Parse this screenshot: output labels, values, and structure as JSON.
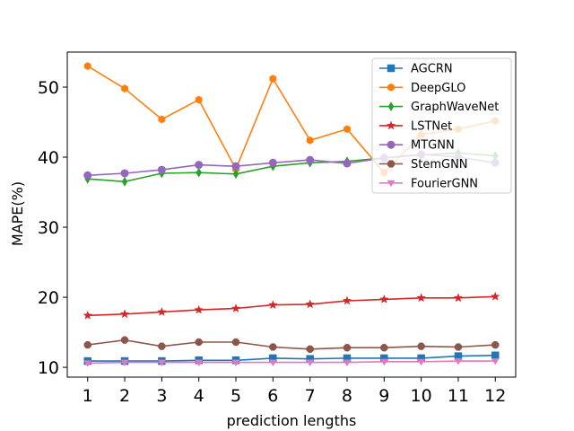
{
  "chart_data": {
    "type": "line",
    "title": "",
    "xlabel": "prediction lengths",
    "ylabel": "MAPE(%)",
    "x": [
      1,
      2,
      3,
      4,
      5,
      6,
      7,
      8,
      9,
      10,
      11,
      12
    ],
    "xlim": [
      0.45,
      12.55
    ],
    "ylim": [
      8.6,
      55.0
    ],
    "yticks": [
      10,
      20,
      30,
      40,
      50
    ],
    "legend_position": "top-right",
    "series": [
      {
        "name": "AGCRN",
        "color": "#1f77b4",
        "marker": "square",
        "values": [
          10.9,
          10.9,
          10.9,
          11.0,
          11.0,
          11.3,
          11.2,
          11.3,
          11.3,
          11.3,
          11.6,
          11.7
        ]
      },
      {
        "name": "DeepGLO",
        "color": "#ff7f0e",
        "marker": "hexagon",
        "values": [
          53.0,
          49.8,
          45.4,
          48.2,
          38.3,
          51.2,
          42.4,
          44.0,
          37.8,
          43.2,
          44.0,
          45.2
        ]
      },
      {
        "name": "GraphWaveNet",
        "color": "#2ca02c",
        "marker": "diamond",
        "values": [
          36.9,
          36.5,
          37.7,
          37.8,
          37.6,
          38.7,
          39.2,
          39.4,
          39.9,
          40.3,
          40.6,
          40.2
        ]
      },
      {
        "name": "LSTNet",
        "color": "#d62728",
        "marker": "star",
        "values": [
          17.4,
          17.6,
          17.9,
          18.2,
          18.4,
          18.9,
          19.0,
          19.5,
          19.7,
          19.9,
          19.9,
          20.1
        ]
      },
      {
        "name": "MTGNN",
        "color": "#9467bd",
        "marker": "circle",
        "values": [
          37.4,
          37.7,
          38.2,
          38.9,
          38.7,
          39.2,
          39.6,
          39.1,
          39.9,
          40.4,
          40.0,
          39.2
        ]
      },
      {
        "name": "StemGNN",
        "color": "#8c564b",
        "marker": "octagon",
        "values": [
          13.2,
          13.9,
          13.0,
          13.6,
          13.6,
          12.9,
          12.6,
          12.8,
          12.8,
          13.0,
          12.9,
          13.2
        ]
      },
      {
        "name": "FourierGNN",
        "color": "#e377c2",
        "marker": "triangle-down",
        "values": [
          10.6,
          10.7,
          10.7,
          10.7,
          10.7,
          10.7,
          10.7,
          10.7,
          10.8,
          10.8,
          10.9,
          10.9
        ]
      }
    ]
  }
}
